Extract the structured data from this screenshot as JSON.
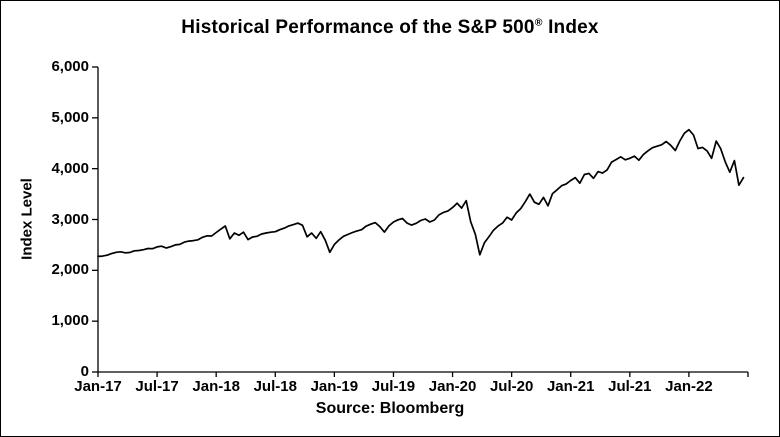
{
  "title": {
    "pre": "Historical Performance of the S&P 500",
    "sup": "®",
    "post": " Index"
  },
  "y_axis_label": "Index Level",
  "source_label": "Source: Bloomberg",
  "chart_data": {
    "type": "line",
    "title": "Historical Performance of the S&P 500® Index",
    "xlabel": "",
    "ylabel": "Index Level",
    "source": "Source: Bloomberg",
    "legend": "none",
    "grid": "off",
    "line_color": "#000000",
    "background_color": "#ffffff",
    "ylim": [
      0,
      6000
    ],
    "y_ticks": [
      0,
      1000,
      2000,
      3000,
      4000,
      5000,
      6000
    ],
    "y_tick_labels": [
      "0",
      "1,000",
      "2,000",
      "3,000",
      "4,000",
      "5,000",
      "6,000"
    ],
    "x_unit": "months since Jan-2017",
    "x_domain": [
      0,
      66
    ],
    "x_ticks_months": [
      0,
      6,
      12,
      18,
      24,
      30,
      36,
      42,
      48,
      54,
      60
    ],
    "x_tick_labels": [
      "Jan-17",
      "Jul-17",
      "Jan-18",
      "Jul-18",
      "Jan-19",
      "Jul-19",
      "Jan-20",
      "Jul-20",
      "Jan-21",
      "Jul-21",
      "Jan-22"
    ],
    "x_step_months": 0.46154,
    "values": [
      2275,
      2280,
      2297,
      2330,
      2355,
      2365,
      2345,
      2350,
      2385,
      2390,
      2405,
      2430,
      2425,
      2460,
      2475,
      2440,
      2465,
      2500,
      2510,
      2555,
      2575,
      2585,
      2600,
      2650,
      2680,
      2675,
      2745,
      2810,
      2872,
      2620,
      2735,
      2690,
      2750,
      2605,
      2655,
      2670,
      2715,
      2735,
      2750,
      2760,
      2800,
      2830,
      2875,
      2900,
      2930,
      2885,
      2660,
      2735,
      2630,
      2760,
      2590,
      2355,
      2510,
      2596,
      2670,
      2707,
      2745,
      2775,
      2800,
      2870,
      2907,
      2940,
      2860,
      2752,
      2875,
      2950,
      2995,
      3020,
      2930,
      2890,
      2925,
      2980,
      3010,
      2950,
      2990,
      3090,
      3140,
      3170,
      3235,
      3320,
      3225,
      3370,
      2954,
      2710,
      2305,
      2541,
      2660,
      2790,
      2870,
      2930,
      3045,
      2990,
      3130,
      3215,
      3350,
      3500,
      3340,
      3300,
      3435,
      3270,
      3510,
      3585,
      3665,
      3700,
      3768,
      3825,
      3714,
      3886,
      3906,
      3811,
      3943,
      3913,
      3975,
      4129,
      4180,
      4233,
      4174,
      4204,
      4247,
      4166,
      4280,
      4352,
      4412,
      4442,
      4470,
      4535,
      4459,
      4357,
      4545,
      4698,
      4766,
      4663,
      4397,
      4419,
      4349,
      4204,
      4543,
      4392,
      4131,
      3930,
      4158,
      3675,
      3825
    ]
  }
}
